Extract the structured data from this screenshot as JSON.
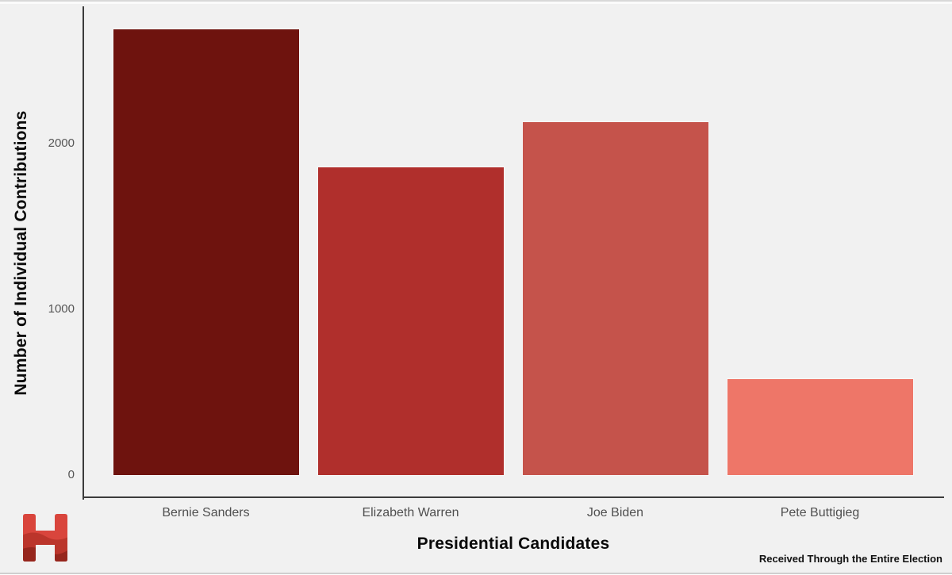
{
  "chart_data": {
    "type": "bar",
    "title": "",
    "xlabel": "Presidential Candidates",
    "ylabel": "Number of Individual Contributions",
    "caption": "Received Through the Entire Election",
    "categories": [
      "Bernie Sanders",
      "Elizabeth Warren",
      "Joe Biden",
      "Pete Buttigieg"
    ],
    "values": [
      2690,
      1855,
      2130,
      580
    ],
    "bar_colors": [
      "#6e130e",
      "#b02f2c",
      "#c5534b",
      "#ee7668"
    ],
    "yticks": [
      0,
      1000,
      2000
    ],
    "ylim": [
      0,
      2830
    ],
    "grid": false,
    "legend": false,
    "orientation": "vertical",
    "background_color": "#f1f1f1",
    "axis_color": "#3b3b3b",
    "tick_label_color": "#565656"
  },
  "logo": {
    "letter": "H",
    "base_color": "#d9453c",
    "shade_color_1": "#b53228",
    "shade_color_2": "#8f231b"
  }
}
